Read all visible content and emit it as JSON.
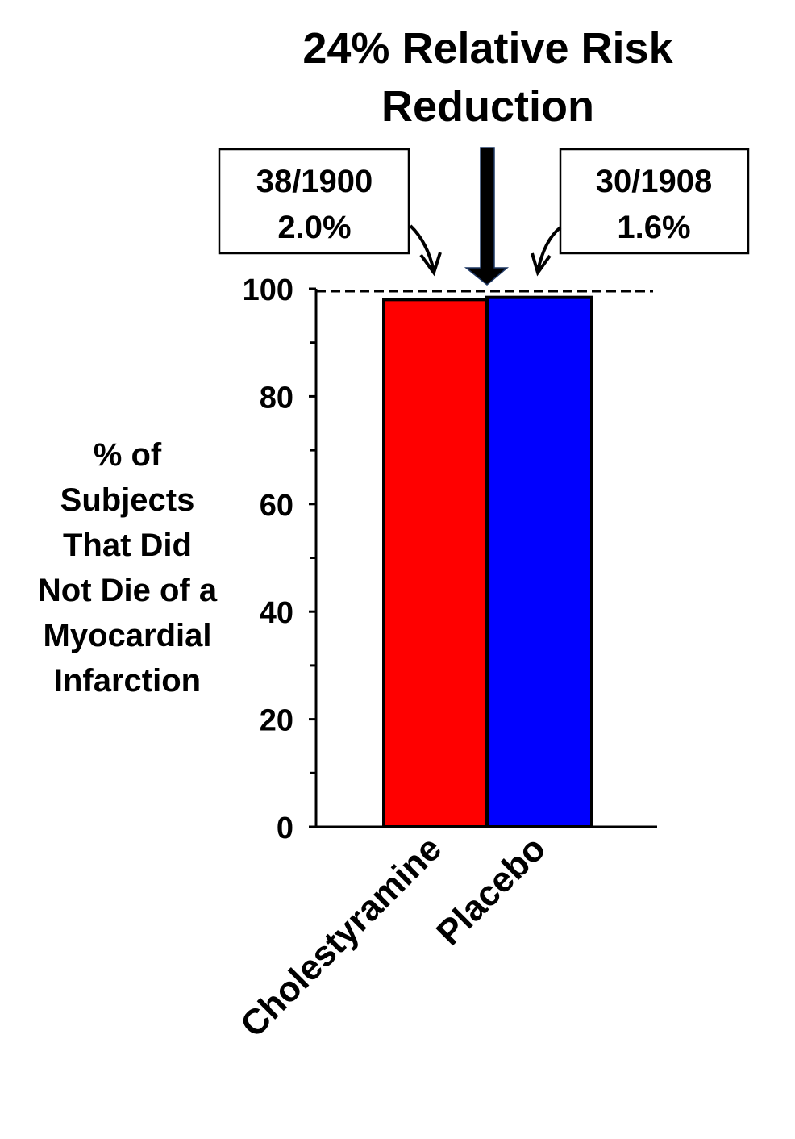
{
  "chart_data": {
    "type": "bar",
    "title": "24% Relative Risk Reduction",
    "title_lines": [
      "24% Relative Risk",
      "Reduction"
    ],
    "ylabel": "% of Subjects That Did Not Die of a Myocardial Infarction",
    "ylabel_lines": [
      "% of",
      "Subjects",
      "That Did",
      "Not Die of a",
      "Myocardial",
      "Infarction"
    ],
    "xlabel": "",
    "categories": [
      "Cholestyramine",
      "Placebo"
    ],
    "values": [
      98.0,
      98.4
    ],
    "colors": [
      "#ff0000",
      "#0000ff"
    ],
    "ylim": [
      0,
      100
    ],
    "yticks": [
      0,
      20,
      40,
      60,
      80,
      100
    ],
    "reference_line": 100,
    "grid": false,
    "annotations": [
      {
        "lines": [
          "38/1900",
          "2.0%"
        ],
        "target": "Cholestyramine"
      },
      {
        "lines": [
          "30/1908",
          "1.6%"
        ],
        "target": "Placebo"
      }
    ]
  }
}
